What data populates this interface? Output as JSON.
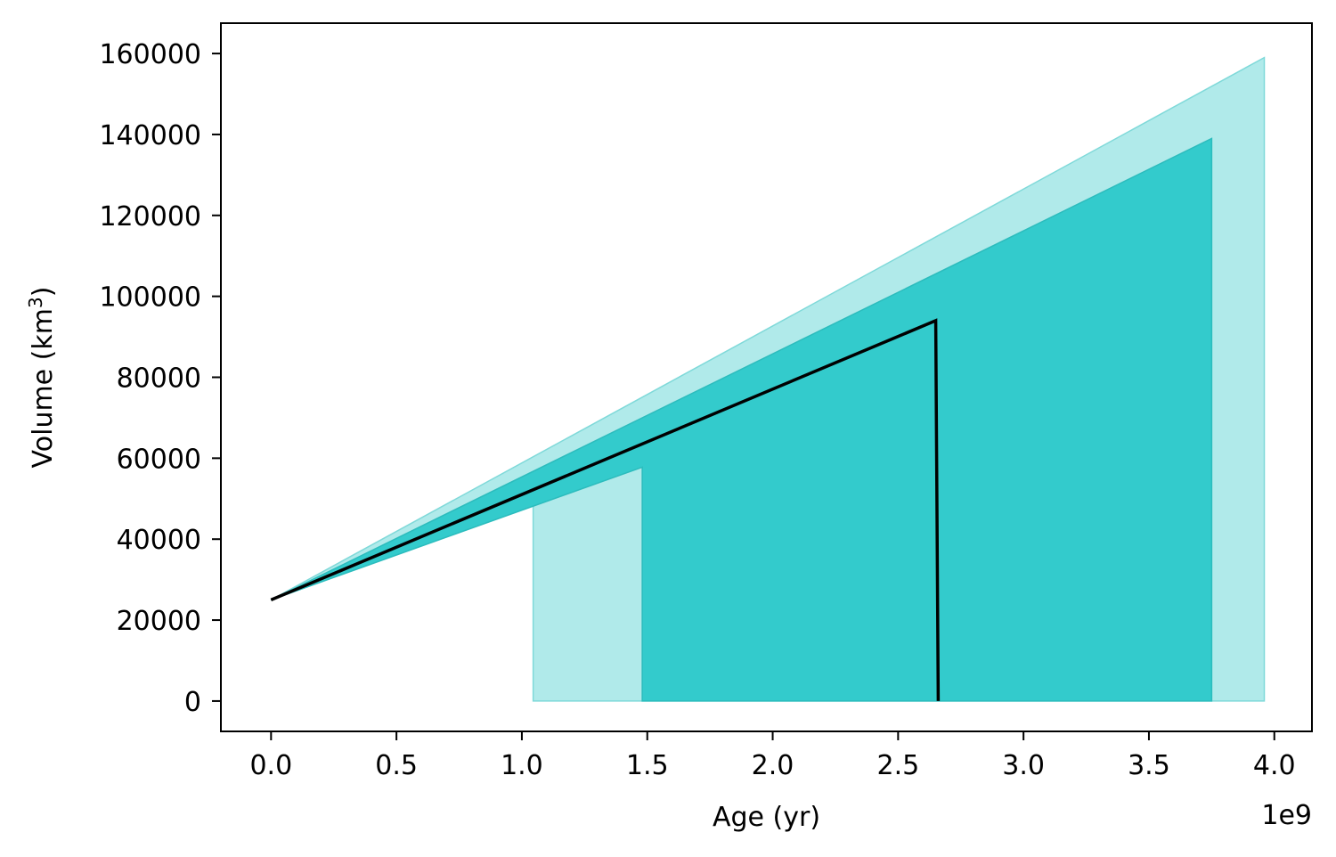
{
  "chart_data": {
    "type": "area",
    "xlabel": "Age (yr)",
    "ylabel": "Volume (km",
    "ylabel_sup": "3",
    "ylabel_close": ")",
    "x_offset_text": "1e9",
    "xlim": [
      -0.2,
      4.15
    ],
    "ylim": [
      -7500,
      167500
    ],
    "x_ticks": [
      0.0,
      0.5,
      1.0,
      1.5,
      2.0,
      2.5,
      3.0,
      3.5,
      4.0
    ],
    "x_tick_labels": [
      "0.0",
      "0.5",
      "1.0",
      "1.5",
      "2.0",
      "2.5",
      "3.0",
      "3.5",
      "4.0"
    ],
    "y_ticks": [
      0,
      20000,
      40000,
      60000,
      80000,
      100000,
      120000,
      140000,
      160000
    ],
    "y_tick_labels": [
      "0",
      "20000",
      "40000",
      "60000",
      "80000",
      "100000",
      "120000",
      "140000",
      "160000"
    ],
    "grid": false,
    "series": [
      {
        "kind": "band",
        "color": "#b0eaea",
        "stroke": "#7fd9d9",
        "points": [
          [
            0.0,
            25000
          ],
          [
            3.96,
            159000
          ],
          [
            3.96,
            0
          ],
          [
            1.045,
            0
          ],
          [
            1.045,
            48500
          ]
        ]
      },
      {
        "kind": "band",
        "color": "#33cbcc",
        "stroke": "#2cbcbd",
        "points": [
          [
            0.0,
            25000
          ],
          [
            3.75,
            139000
          ],
          [
            3.75,
            0
          ],
          [
            1.48,
            0
          ],
          [
            1.48,
            57800
          ]
        ]
      },
      {
        "kind": "line",
        "color": "#000000",
        "points": [
          [
            0.0,
            25000
          ],
          [
            2.65,
            94000
          ],
          [
            2.66,
            0
          ]
        ]
      }
    ]
  }
}
